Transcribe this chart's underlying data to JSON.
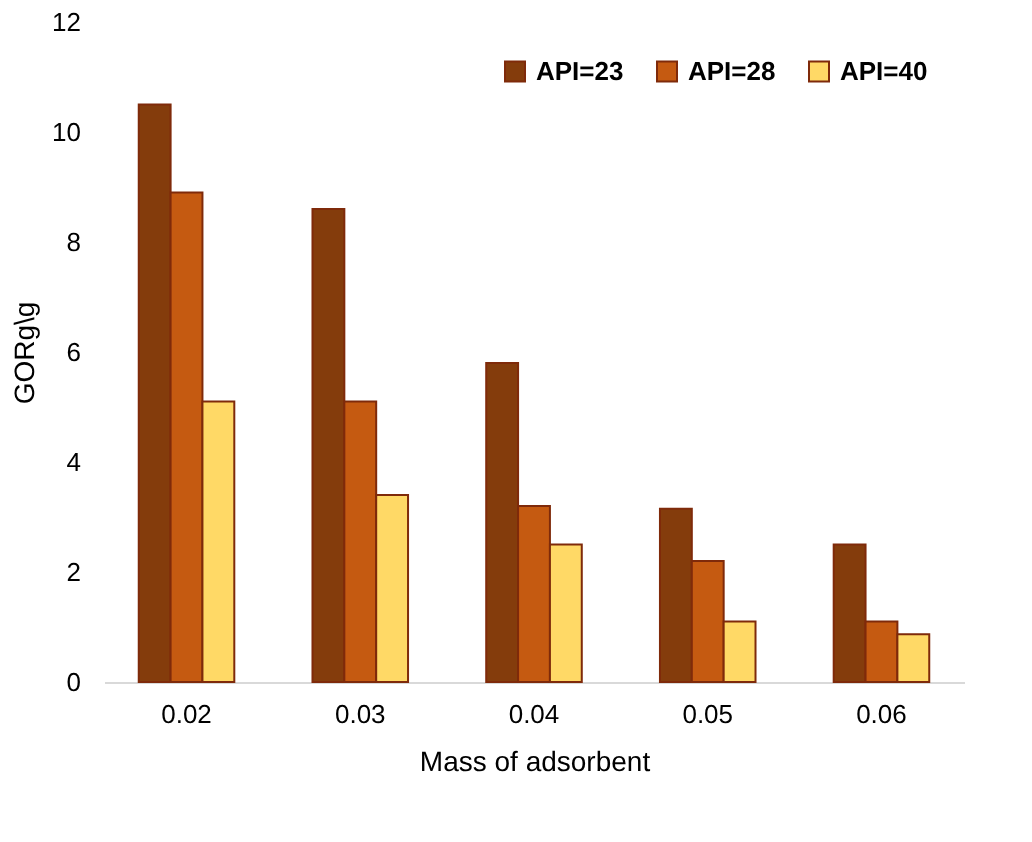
{
  "chart_data": {
    "type": "bar",
    "xlabel": "Mass of adsorbent",
    "ylabel": "GORg\\g",
    "categories": [
      "0.02",
      "0.03",
      "0.04",
      "0.05",
      "0.06"
    ],
    "series": [
      {
        "name": "API=23",
        "color": "#843c0c",
        "values": [
          10.5,
          8.6,
          5.8,
          3.15,
          2.5
        ]
      },
      {
        "name": "API=28",
        "color": "#c55a11",
        "values": [
          8.9,
          5.1,
          3.2,
          2.2,
          1.1
        ]
      },
      {
        "name": "API=40",
        "color": "#ffd966",
        "values": [
          5.1,
          3.4,
          2.5,
          1.1,
          0.87
        ]
      }
    ],
    "ylim": [
      0,
      12
    ],
    "yticks": [
      0,
      2,
      4,
      6,
      8,
      10,
      12
    ],
    "grid": false,
    "legend": "top right"
  }
}
